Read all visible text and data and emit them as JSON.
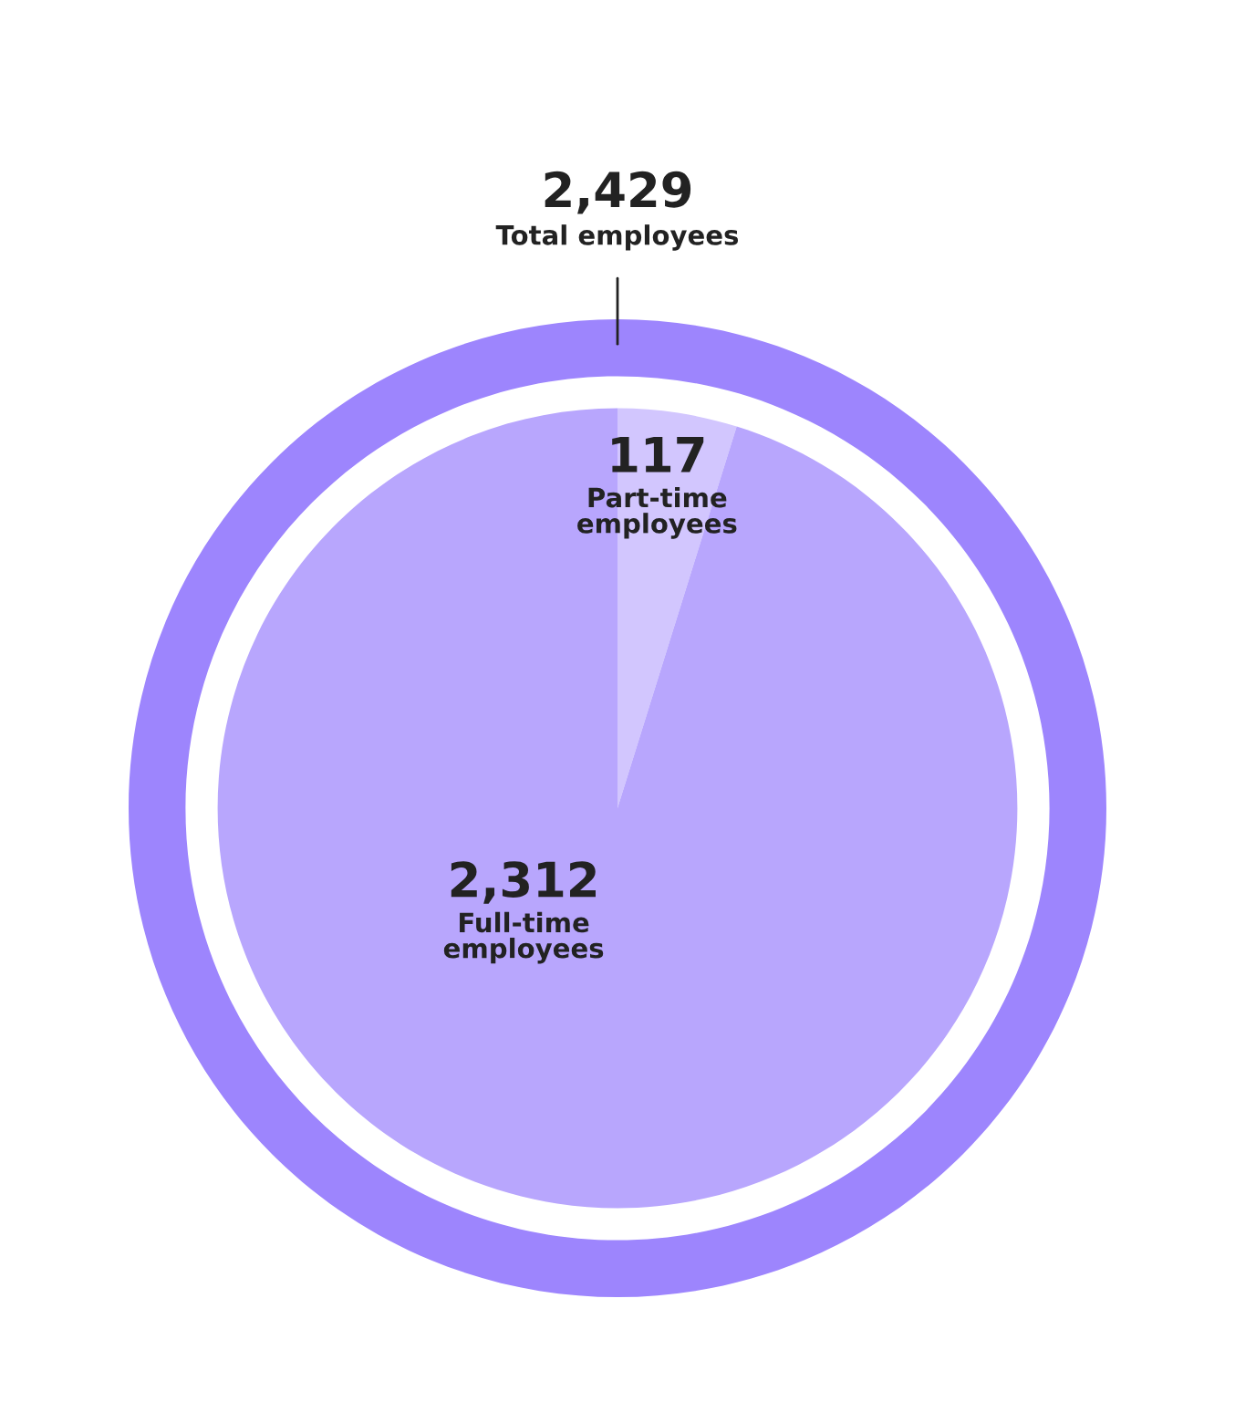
{
  "chart_data": {
    "type": "donut",
    "categories": [
      "Part-time employees",
      "Full-time employees"
    ],
    "series": [
      {
        "type": "pie",
        "values": [
          117,
          2312
        ],
        "value_labels": [
          "117",
          "2,312"
        ],
        "colors": [
          "#d2c6fe",
          "#b8a6fd"
        ]
      },
      {
        "type": "donut",
        "name": "Total employees",
        "values": [
          2429,
          null
        ],
        "value_labels": [
          "2,429",
          null
        ],
        "color": "#9d85fd"
      }
    ]
  }
}
